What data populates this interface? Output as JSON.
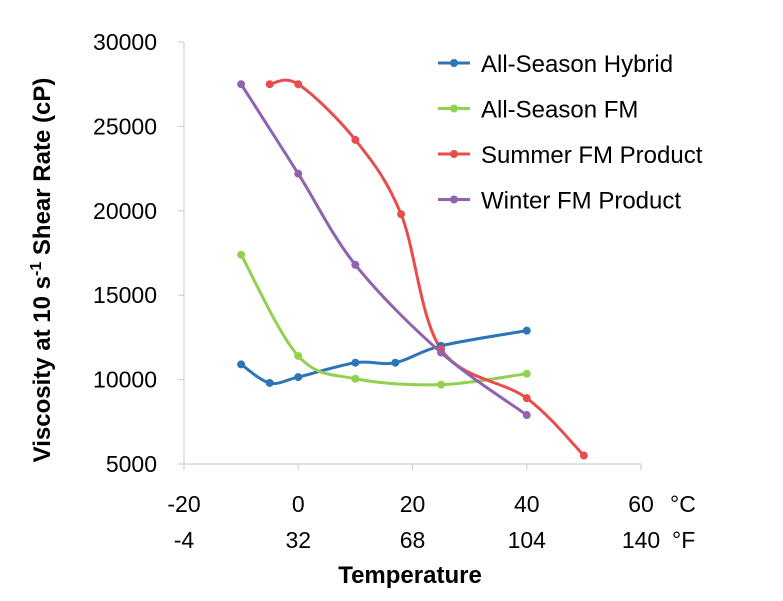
{
  "chart_data": {
    "type": "line",
    "title": "",
    "xlabel": "Temperature",
    "ylabel": "Viscosity at 10 s-1 Shear Rate (cP)",
    "ylabel_parts": {
      "before": "Viscosity at 10 s",
      "sup": "-1",
      "after": " Shear Rate (cP)"
    },
    "xlim": [
      -20,
      60
    ],
    "ylim": [
      5000,
      30000
    ],
    "x_ticks_c": [
      "-20",
      "0",
      "20",
      "40",
      "60"
    ],
    "x_ticks_c_values": [
      -20,
      0,
      20,
      40,
      60
    ],
    "x_unit_c": "°C",
    "x_ticks_f": [
      "-4",
      "32",
      "68",
      "104",
      "140"
    ],
    "x_unit_f": "°F",
    "y_ticks": [
      "5000",
      "10000",
      "15000",
      "20000",
      "25000",
      "30000"
    ],
    "y_ticks_values": [
      5000,
      10000,
      15000,
      20000,
      25000,
      30000
    ],
    "grid": false,
    "legend_position": "top-right",
    "series": [
      {
        "name": "All-Season Hybrid",
        "color": "#2e75b6",
        "x": [
          -10,
          -5,
          0,
          10,
          17,
          25,
          40
        ],
        "y": [
          10900,
          9800,
          10150,
          11000,
          11000,
          12000,
          12900
        ]
      },
      {
        "name": "All-Season FM",
        "color": "#92d050",
        "x": [
          -10,
          0,
          10,
          25,
          40
        ],
        "y": [
          17400,
          11400,
          10050,
          9700,
          10350
        ]
      },
      {
        "name": "Summer FM Product",
        "color": "#e84c4c",
        "x": [
          -5,
          0,
          10,
          18,
          25,
          40,
          50
        ],
        "y": [
          27500,
          27500,
          24200,
          19800,
          11800,
          8900,
          5500
        ]
      },
      {
        "name": "Winter FM Product",
        "color": "#8e63b0",
        "x": [
          -10,
          0,
          10,
          25,
          40
        ],
        "y": [
          27500,
          22200,
          16800,
          11600,
          7900
        ]
      }
    ]
  }
}
